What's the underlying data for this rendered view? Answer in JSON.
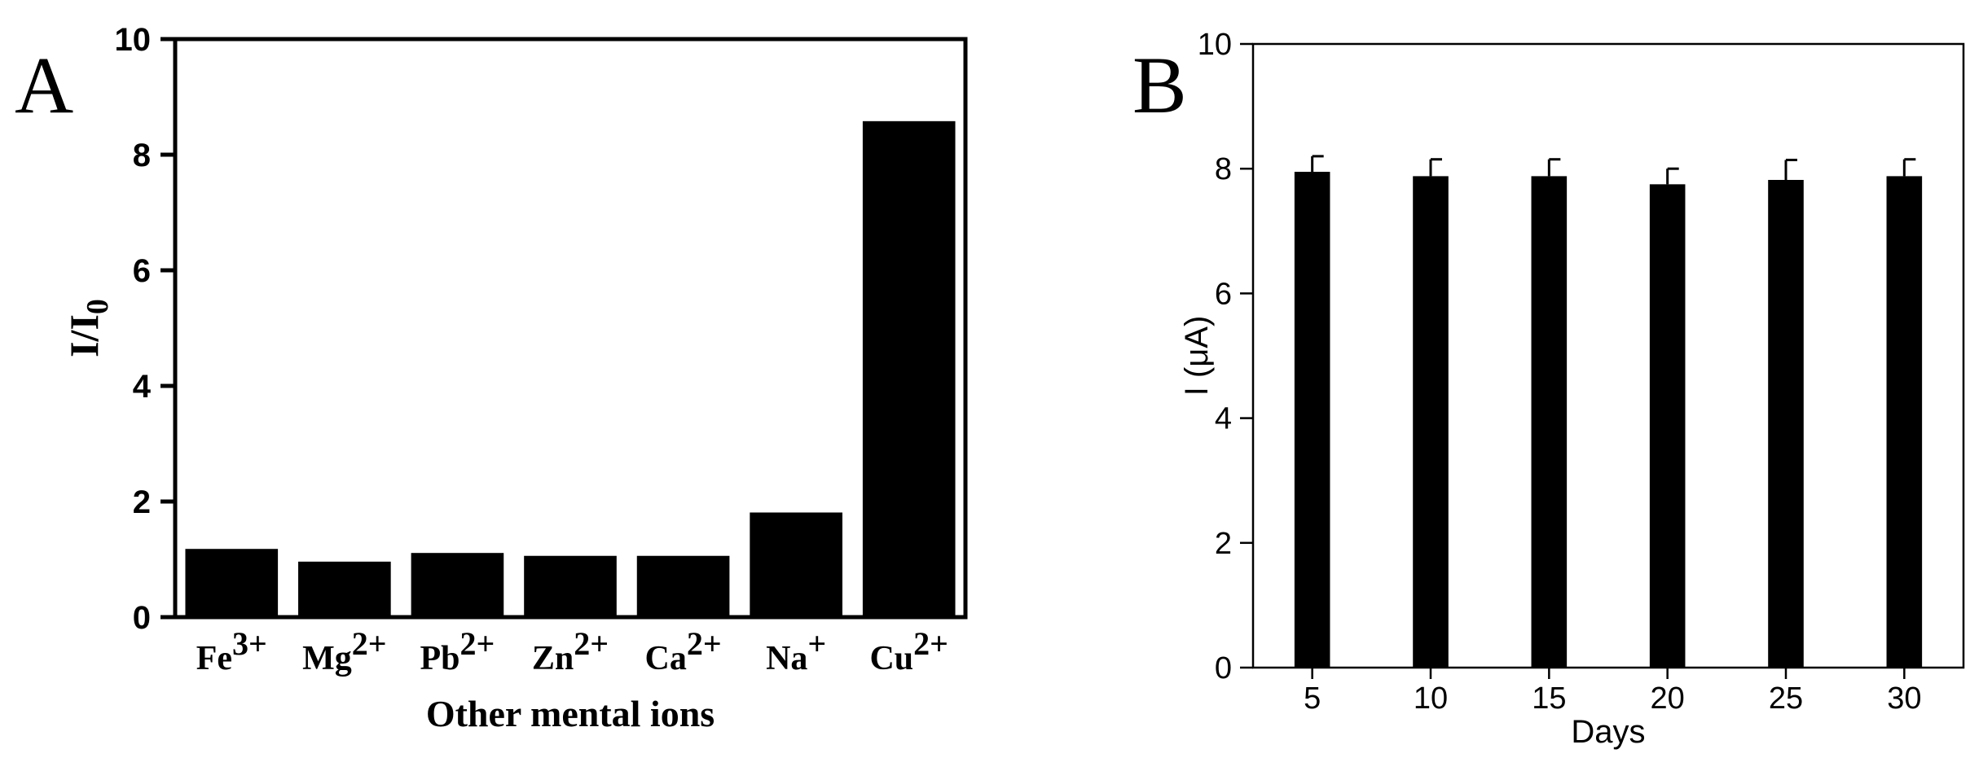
{
  "chart_data": [
    {
      "type": "bar",
      "panel_label": "A",
      "title": "",
      "xlabel": "Other mental ions",
      "ylabel": "I/I",
      "ylabel_subscript": "0",
      "categories": [
        "Fe",
        "Mg",
        "Pb",
        "Zn",
        "Ca",
        "Na",
        "Cu"
      ],
      "category_superscripts": [
        "3+",
        "2+",
        "2+",
        "2+",
        "2+",
        "+",
        "2+"
      ],
      "values": [
        1.18,
        0.96,
        1.11,
        1.06,
        1.06,
        1.81,
        8.58
      ],
      "ylim": [
        0,
        10
      ],
      "yticks": [
        "0",
        "2",
        "4",
        "6",
        "8",
        "10"
      ],
      "grid": false,
      "bar_color": "#000000"
    },
    {
      "type": "bar",
      "panel_label": "B",
      "title": "",
      "xlabel": "Days",
      "ylabel": "I (μA)",
      "categories": [
        "5",
        "10",
        "15",
        "20",
        "25",
        "30"
      ],
      "values": [
        7.95,
        7.88,
        7.88,
        7.75,
        7.82,
        7.88
      ],
      "errors": [
        0.25,
        0.27,
        0.27,
        0.25,
        0.32,
        0.27
      ],
      "ylim": [
        0,
        10
      ],
      "yticks": [
        "0",
        "2",
        "4",
        "6",
        "8",
        "10"
      ],
      "grid": false,
      "bar_color": "#000000"
    }
  ]
}
